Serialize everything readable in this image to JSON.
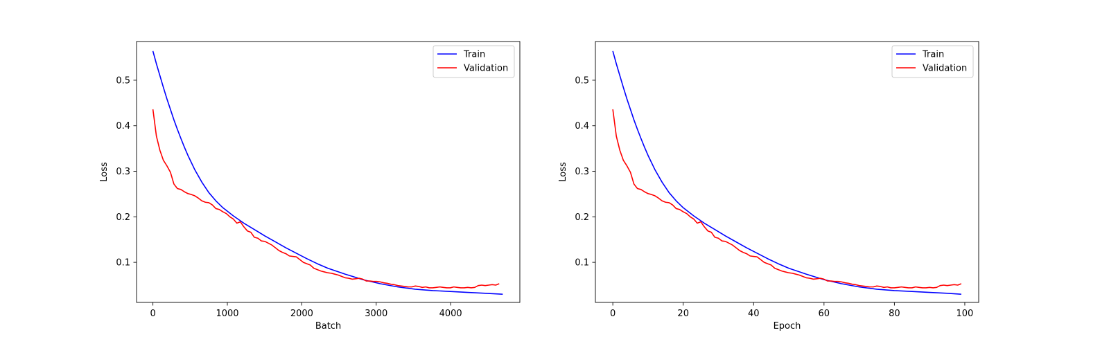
{
  "chart_data": [
    {
      "type": "line",
      "xlabel": "Batch",
      "ylabel": "Loss",
      "xlim": [
        -220,
        4930
      ],
      "ylim": [
        0.012,
        0.585
      ],
      "xticks": [
        0,
        1000,
        2000,
        3000,
        4000
      ],
      "xtick_labels": [
        "0",
        "1000",
        "2000",
        "3000",
        "4000"
      ],
      "yticks": [
        0.1,
        0.2,
        0.3,
        0.4,
        0.5
      ],
      "ytick_labels": [
        "0.1",
        "0.2",
        "0.3",
        "0.4",
        "0.5"
      ],
      "legend_position": "top-right",
      "grid": false,
      "series": [
        {
          "name": "Train",
          "color": "#0000ff",
          "x": [
            0,
            47,
            94,
            141,
            188,
            235,
            282,
            329,
            376,
            423,
            470,
            564,
            658,
            752,
            846,
            940,
            1081,
            1222,
            1363,
            1504,
            1645,
            1786,
            1927,
            2068,
            2209,
            2350,
            2585,
            2820,
            3055,
            3290,
            3525,
            3760,
            3995,
            4230,
            4465,
            4700
          ],
          "y": [
            0.564,
            0.536,
            0.51,
            0.484,
            0.459,
            0.436,
            0.413,
            0.392,
            0.372,
            0.353,
            0.335,
            0.303,
            0.276,
            0.253,
            0.235,
            0.22,
            0.202,
            0.186,
            0.172,
            0.158,
            0.145,
            0.132,
            0.12,
            0.108,
            0.097,
            0.087,
            0.074,
            0.062,
            0.053,
            0.046,
            0.041,
            0.038,
            0.036,
            0.034,
            0.032,
            0.03
          ]
        },
        {
          "name": "Validation",
          "color": "#ff0000",
          "x": [
            0,
            47,
            94,
            141,
            188,
            235,
            282,
            329,
            376,
            423,
            470,
            517,
            564,
            611,
            658,
            705,
            752,
            799,
            846,
            893,
            940,
            987,
            1034,
            1081,
            1128,
            1175,
            1222,
            1269,
            1316,
            1363,
            1410,
            1457,
            1504,
            1551,
            1598,
            1645,
            1692,
            1739,
            1786,
            1833,
            1880,
            1927,
            1974,
            2021,
            2068,
            2115,
            2162,
            2209,
            2256,
            2303,
            2350,
            2397,
            2444,
            2491,
            2538,
            2585,
            2632,
            2679,
            2726,
            2773,
            2820,
            2867,
            2914,
            2961,
            3008,
            3055,
            3102,
            3149,
            3196,
            3243,
            3290,
            3337,
            3384,
            3431,
            3478,
            3525,
            3572,
            3619,
            3666,
            3713,
            3760,
            3807,
            3854,
            3901,
            3948,
            3995,
            4042,
            4089,
            4136,
            4183,
            4230,
            4277,
            4324,
            4371,
            4418,
            4465,
            4512,
            4559,
            4606,
            4653
          ],
          "y": [
            0.436,
            0.377,
            0.346,
            0.324,
            0.312,
            0.298,
            0.272,
            0.262,
            0.26,
            0.255,
            0.251,
            0.249,
            0.246,
            0.241,
            0.235,
            0.232,
            0.231,
            0.226,
            0.218,
            0.216,
            0.211,
            0.207,
            0.2,
            0.195,
            0.186,
            0.189,
            0.178,
            0.169,
            0.166,
            0.155,
            0.153,
            0.147,
            0.146,
            0.142,
            0.138,
            0.132,
            0.126,
            0.122,
            0.119,
            0.114,
            0.113,
            0.112,
            0.106,
            0.1,
            0.097,
            0.094,
            0.087,
            0.084,
            0.081,
            0.079,
            0.077,
            0.076,
            0.074,
            0.072,
            0.069,
            0.066,
            0.065,
            0.063,
            0.064,
            0.065,
            0.063,
            0.059,
            0.059,
            0.058,
            0.058,
            0.057,
            0.055,
            0.054,
            0.052,
            0.051,
            0.049,
            0.048,
            0.047,
            0.046,
            0.046,
            0.048,
            0.047,
            0.045,
            0.046,
            0.044,
            0.044,
            0.045,
            0.046,
            0.045,
            0.044,
            0.044,
            0.046,
            0.045,
            0.044,
            0.044,
            0.045,
            0.044,
            0.045,
            0.049,
            0.05,
            0.049,
            0.05,
            0.051,
            0.05,
            0.053
          ]
        }
      ]
    },
    {
      "type": "line",
      "xlabel": "Epoch",
      "ylabel": "Loss",
      "xlim": [
        -4.95,
        103.95
      ],
      "ylim": [
        0.012,
        0.585
      ],
      "xticks": [
        0,
        20,
        40,
        60,
        80,
        100
      ],
      "xtick_labels": [
        "0",
        "20",
        "40",
        "60",
        "80",
        "100"
      ],
      "yticks": [
        0.1,
        0.2,
        0.3,
        0.4,
        0.5
      ],
      "ytick_labels": [
        "0.1",
        "0.2",
        "0.3",
        "0.4",
        "0.5"
      ],
      "legend_position": "top-right",
      "grid": false,
      "series": [
        {
          "name": "Train",
          "color": "#0000ff",
          "x": [
            0,
            1,
            2,
            3,
            4,
            5,
            6,
            7,
            8,
            9,
            10,
            12,
            14,
            16,
            18,
            20,
            23,
            26,
            29,
            32,
            35,
            38,
            41,
            44,
            47,
            50,
            55,
            60,
            65,
            70,
            75,
            80,
            85,
            90,
            95,
            99
          ],
          "y": [
            0.564,
            0.536,
            0.51,
            0.484,
            0.459,
            0.436,
            0.413,
            0.392,
            0.372,
            0.353,
            0.335,
            0.303,
            0.276,
            0.253,
            0.235,
            0.22,
            0.202,
            0.186,
            0.172,
            0.158,
            0.145,
            0.132,
            0.12,
            0.108,
            0.097,
            0.087,
            0.074,
            0.062,
            0.053,
            0.046,
            0.041,
            0.038,
            0.036,
            0.034,
            0.032,
            0.03
          ]
        },
        {
          "name": "Validation",
          "color": "#ff0000",
          "x": [
            0,
            1,
            2,
            3,
            4,
            5,
            6,
            7,
            8,
            9,
            10,
            11,
            12,
            13,
            14,
            15,
            16,
            17,
            18,
            19,
            20,
            21,
            22,
            23,
            24,
            25,
            26,
            27,
            28,
            29,
            30,
            31,
            32,
            33,
            34,
            35,
            36,
            37,
            38,
            39,
            40,
            41,
            42,
            43,
            44,
            45,
            46,
            47,
            48,
            49,
            50,
            51,
            52,
            53,
            54,
            55,
            56,
            57,
            58,
            59,
            60,
            61,
            62,
            63,
            64,
            65,
            66,
            67,
            68,
            69,
            70,
            71,
            72,
            73,
            74,
            75,
            76,
            77,
            78,
            79,
            80,
            81,
            82,
            83,
            84,
            85,
            86,
            87,
            88,
            89,
            90,
            91,
            92,
            93,
            94,
            95,
            96,
            97,
            98,
            99
          ],
          "y": [
            0.436,
            0.377,
            0.346,
            0.324,
            0.312,
            0.298,
            0.272,
            0.262,
            0.26,
            0.255,
            0.251,
            0.249,
            0.246,
            0.241,
            0.235,
            0.232,
            0.231,
            0.226,
            0.218,
            0.216,
            0.211,
            0.207,
            0.2,
            0.195,
            0.186,
            0.189,
            0.178,
            0.169,
            0.166,
            0.155,
            0.153,
            0.147,
            0.146,
            0.142,
            0.138,
            0.132,
            0.126,
            0.122,
            0.119,
            0.114,
            0.113,
            0.112,
            0.106,
            0.1,
            0.097,
            0.094,
            0.087,
            0.084,
            0.081,
            0.079,
            0.077,
            0.076,
            0.074,
            0.072,
            0.069,
            0.066,
            0.065,
            0.063,
            0.064,
            0.065,
            0.063,
            0.059,
            0.059,
            0.058,
            0.058,
            0.057,
            0.055,
            0.054,
            0.052,
            0.051,
            0.049,
            0.048,
            0.047,
            0.046,
            0.046,
            0.048,
            0.047,
            0.045,
            0.046,
            0.044,
            0.044,
            0.045,
            0.046,
            0.045,
            0.044,
            0.044,
            0.046,
            0.045,
            0.044,
            0.044,
            0.045,
            0.044,
            0.045,
            0.049,
            0.05,
            0.049,
            0.05,
            0.051,
            0.05,
            0.053
          ]
        }
      ]
    }
  ]
}
